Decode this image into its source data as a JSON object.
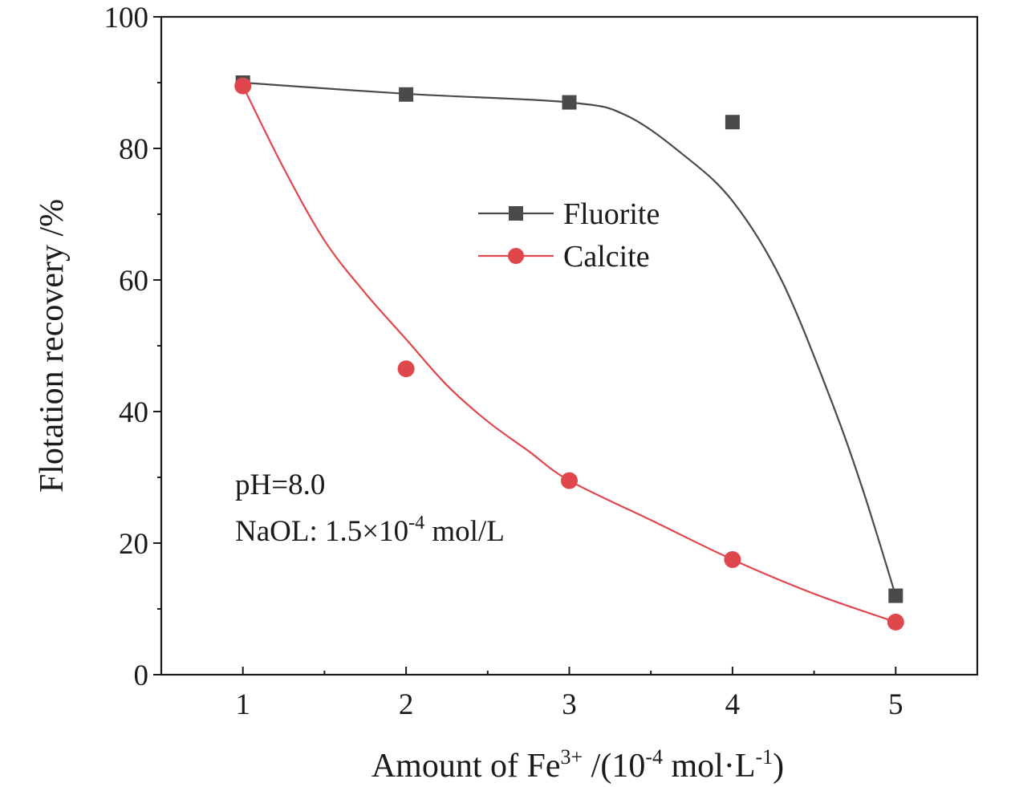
{
  "chart_data": {
    "type": "line",
    "xlabel": {
      "base": "Amount of Fe",
      "sup1": "3+",
      "mid": " /(10",
      "sup2": "-4",
      "mid2": " mol·L",
      "sup3": "-1",
      "end": ")"
    },
    "ylabel": "Flotation recovery /%",
    "xlim": [
      0.5,
      5.5
    ],
    "ylim": [
      0,
      100
    ],
    "xticks": [
      1,
      2,
      3,
      4,
      5
    ],
    "yticks": [
      0,
      20,
      40,
      60,
      80,
      100
    ],
    "x_minor": [
      1.5,
      2.5,
      3.5,
      4.5
    ],
    "y_minor": [
      10,
      30,
      50,
      70,
      90
    ],
    "grid": false,
    "legend_position": "upper-center",
    "x": [
      1,
      2,
      3,
      4,
      5
    ],
    "series": [
      {
        "name": "Fluorite",
        "color": "#4a4a4a",
        "marker": "square",
        "values": [
          90.0,
          88.2,
          87.0,
          84.0,
          12.0
        ],
        "fit_curve": [
          [
            1,
            90.0
          ],
          [
            2,
            88.3
          ],
          [
            3,
            87.0
          ],
          [
            3.35,
            85.0
          ],
          [
            3.7,
            79.0
          ],
          [
            4.0,
            72.0
          ],
          [
            4.3,
            60.0
          ],
          [
            4.6,
            42.0
          ],
          [
            4.8,
            28.0
          ],
          [
            5,
            12.0
          ]
        ]
      },
      {
        "name": "Calcite",
        "color": "#e0474c",
        "marker": "circle",
        "values": [
          89.5,
          46.5,
          29.5,
          17.5,
          8.0
        ],
        "fit_curve": [
          [
            1,
            89.5
          ],
          [
            1.25,
            77.0
          ],
          [
            1.5,
            66.0
          ],
          [
            1.75,
            58.0
          ],
          [
            2,
            51.0
          ],
          [
            2.25,
            44.0
          ],
          [
            2.5,
            38.5
          ],
          [
            2.75,
            34.0
          ],
          [
            3,
            29.5
          ],
          [
            3.5,
            23.5
          ],
          [
            4,
            17.5
          ],
          [
            4.5,
            12.3
          ],
          [
            5,
            8.0
          ]
        ]
      }
    ],
    "annotations": {
      "ph": "pH=8.0",
      "naol_base": "NaOL: 1.5×10",
      "naol_sup": "-4",
      "naol_end": " mol/L"
    }
  }
}
